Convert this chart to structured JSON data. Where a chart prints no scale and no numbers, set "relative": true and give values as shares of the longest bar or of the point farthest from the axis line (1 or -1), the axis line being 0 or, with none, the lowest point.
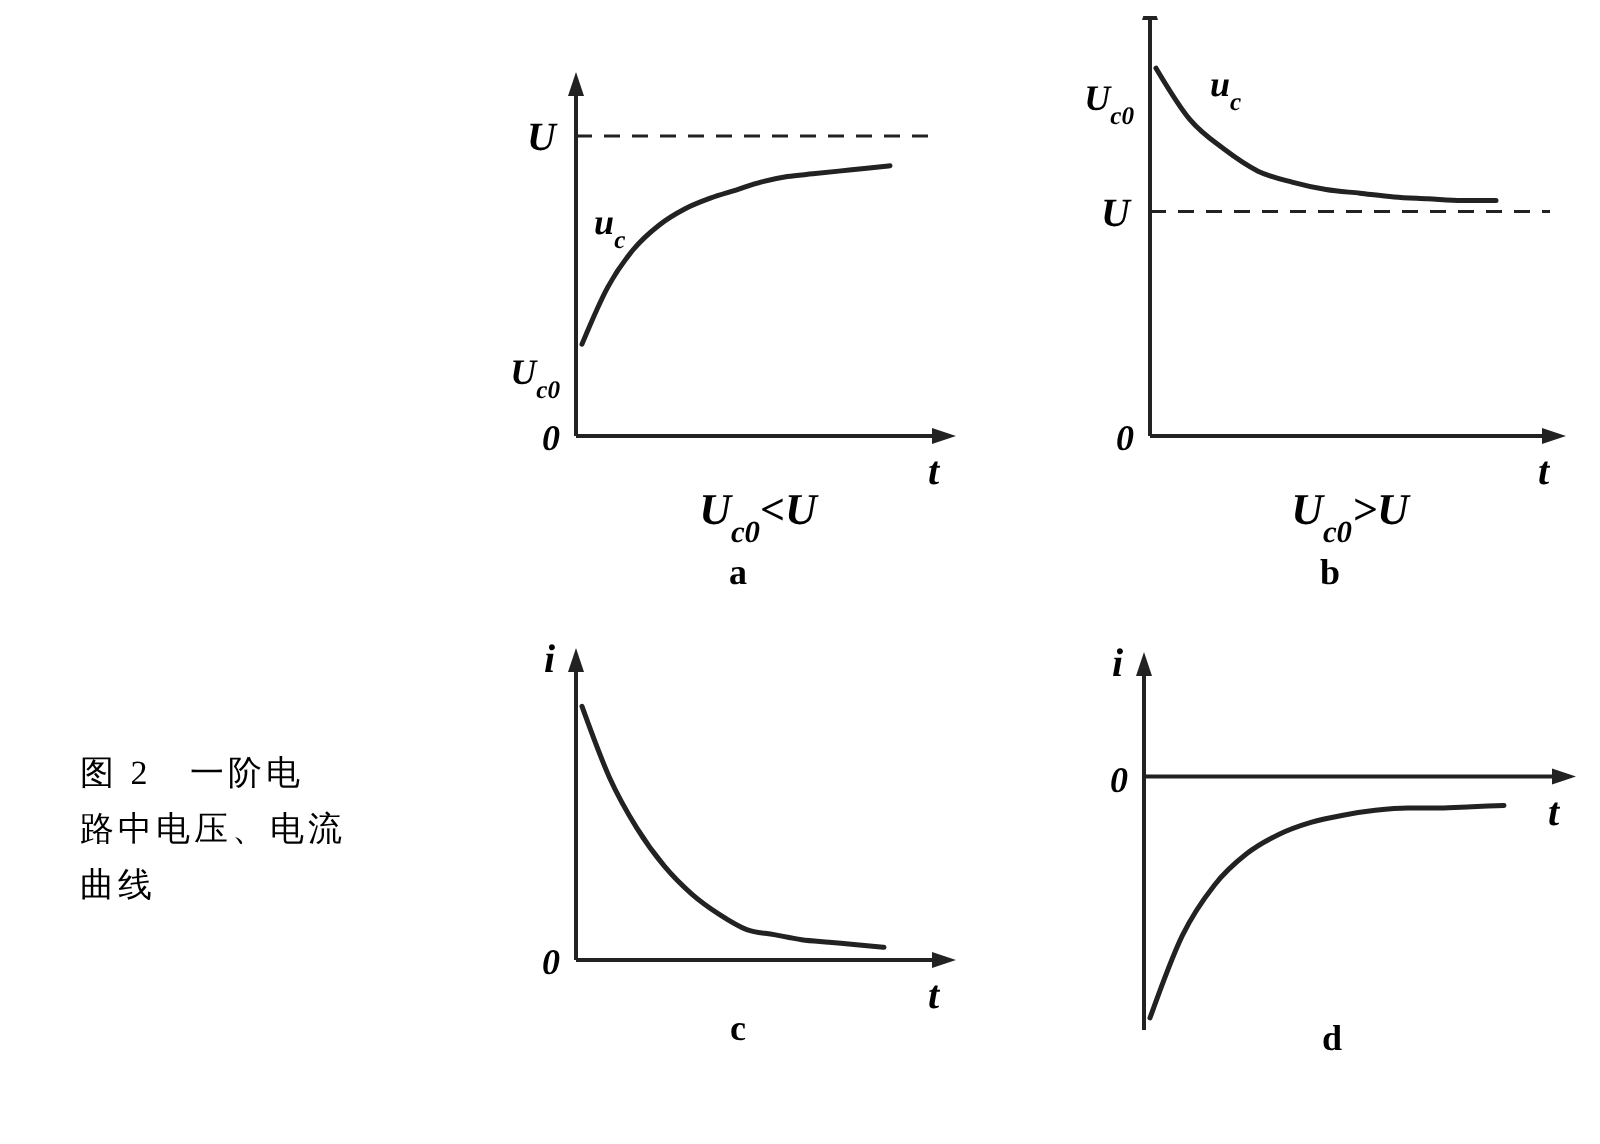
{
  "chart_data": [
    {
      "type": "line",
      "title": "a",
      "subtitle": "U$_{c0}$<U",
      "xlabel": "t",
      "relative": true,
      "categories": [
        null,
        null,
        null,
        null,
        null,
        null,
        null,
        null,
        null,
        null,
        null,
        null,
        null
      ],
      "series": [
        {
          "name": "u$_{c}$",
          "color": "#222222",
          "values": [
            0.34,
            0.55,
            0.69,
            0.78,
            0.84,
            0.88,
            0.91,
            0.94,
            0.96,
            0.97,
            0.98,
            0.99,
            1
          ]
        }
      ],
      "ref_lines": [
        {
          "axis": "y",
          "value": 1.11,
          "label": "U",
          "line_style": "dashed"
        }
      ],
      "annotations": [
        "U$_{c0}$",
        "0"
      ]
    },
    {
      "type": "line",
      "title": "b",
      "subtitle": "U$_{c0}$>U",
      "xlabel": "t",
      "relative": true,
      "categories": [
        null,
        null,
        null,
        null,
        null,
        null,
        null,
        null,
        null,
        null,
        null
      ],
      "series": [
        {
          "name": "u$_{c}$",
          "color": "#222222",
          "values": [
            1,
            0.86,
            0.78,
            0.72,
            0.69,
            0.67,
            0.66,
            0.65,
            0.645,
            0.64,
            0.64
          ]
        }
      ],
      "ref_lines": [
        {
          "axis": "y",
          "value": 0.61,
          "label": "U",
          "line_style": "dashed"
        }
      ],
      "annotations": [
        "U$_{c0}$",
        "0"
      ]
    },
    {
      "type": "line",
      "title": "c",
      "xlabel": "t",
      "ylabel": "i",
      "relative": true,
      "categories": [
        null,
        null,
        null,
        null,
        null,
        null,
        null,
        null,
        null,
        null,
        null,
        null
      ],
      "series": [
        {
          "color": "#222222",
          "values": [
            1,
            0.72,
            0.52,
            0.37,
            0.26,
            0.18,
            0.12,
            0.1,
            0.08,
            0.07,
            0.06,
            0.05
          ]
        }
      ],
      "annotations": [
        "0",
        "图 2　一阶电路中电压、电流曲线"
      ]
    },
    {
      "type": "line",
      "title": "d",
      "xlabel": "t",
      "ylabel": "i",
      "relative": true,
      "categories": [
        null,
        null,
        null,
        null,
        null,
        null,
        null,
        null,
        null,
        null,
        null,
        null
      ],
      "series": [
        {
          "color": "#222222",
          "values": [
            -1,
            -0.66,
            -0.45,
            -0.32,
            -0.24,
            -0.19,
            -0.16,
            -0.14,
            -0.13,
            -0.13,
            -0.125,
            -0.12
          ]
        }
      ],
      "annotations": [
        "0"
      ]
    }
  ]
}
